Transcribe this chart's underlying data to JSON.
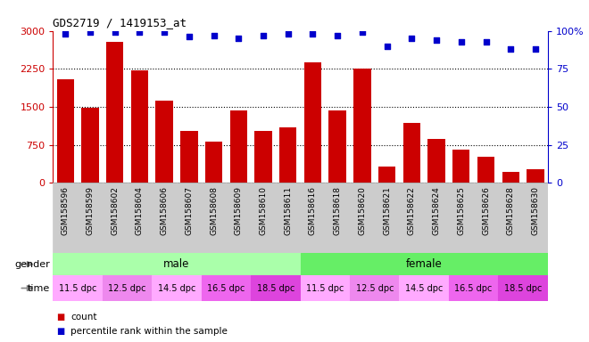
{
  "title": "GDS2719 / 1419153_at",
  "samples": [
    "GSM158596",
    "GSM158599",
    "GSM158602",
    "GSM158604",
    "GSM158606",
    "GSM158607",
    "GSM158608",
    "GSM158609",
    "GSM158610",
    "GSM158611",
    "GSM158616",
    "GSM158618",
    "GSM158620",
    "GSM158621",
    "GSM158622",
    "GSM158624",
    "GSM158625",
    "GSM158626",
    "GSM158628",
    "GSM158630"
  ],
  "counts": [
    2050,
    1480,
    2780,
    2220,
    1620,
    1020,
    820,
    1430,
    1020,
    1100,
    2380,
    1430,
    2260,
    330,
    1180,
    870,
    660,
    520,
    215,
    270
  ],
  "percentile_ranks": [
    98,
    99,
    99,
    99,
    99,
    96,
    97,
    95,
    97,
    98,
    98,
    97,
    99,
    90,
    95,
    94,
    93,
    93,
    88,
    88
  ],
  "bar_color": "#cc0000",
  "dot_color": "#0000cc",
  "ylim_left": [
    0,
    3000
  ],
  "ylim_right": [
    0,
    100
  ],
  "yticks_left": [
    0,
    750,
    1500,
    2250,
    3000
  ],
  "yticks_right": [
    0,
    25,
    50,
    75,
    100
  ],
  "ytick_labels_left": [
    "0",
    "750",
    "1500",
    "2250",
    "3000"
  ],
  "ytick_labels_right": [
    "0",
    "25",
    "50",
    "75",
    "100%"
  ],
  "grid_lines": [
    750,
    1500,
    2250
  ],
  "gender_groups": [
    {
      "label": "male",
      "start": 0,
      "end": 10,
      "color": "#aaffaa"
    },
    {
      "label": "female",
      "start": 10,
      "end": 20,
      "color": "#66ee66"
    }
  ],
  "time_groups": [
    {
      "label": "11.5 dpc",
      "start": 0,
      "end": 2,
      "color": "#ffaaff"
    },
    {
      "label": "12.5 dpc",
      "start": 2,
      "end": 4,
      "color": "#ee88ee"
    },
    {
      "label": "14.5 dpc",
      "start": 4,
      "end": 6,
      "color": "#ffaaff"
    },
    {
      "label": "16.5 dpc",
      "start": 6,
      "end": 8,
      "color": "#ee66ee"
    },
    {
      "label": "18.5 dpc",
      "start": 8,
      "end": 10,
      "color": "#dd44dd"
    },
    {
      "label": "11.5 dpc",
      "start": 10,
      "end": 12,
      "color": "#ffaaff"
    },
    {
      "label": "12.5 dpc",
      "start": 12,
      "end": 14,
      "color": "#ee88ee"
    },
    {
      "label": "14.5 dpc",
      "start": 14,
      "end": 16,
      "color": "#ffaaff"
    },
    {
      "label": "16.5 dpc",
      "start": 16,
      "end": 18,
      "color": "#ee66ee"
    },
    {
      "label": "18.5 dpc",
      "start": 18,
      "end": 20,
      "color": "#dd44dd"
    }
  ],
  "legend_items": [
    {
      "label": "count",
      "color": "#cc0000"
    },
    {
      "label": "percentile rank within the sample",
      "color": "#0000cc"
    }
  ],
  "bg_color": "#ffffff",
  "tick_label_color_left": "#cc0000",
  "tick_label_color_right": "#0000cc",
  "gender_label": "gender",
  "time_label": "time",
  "xlabel_bg": "#cccccc",
  "xlabel_border": "#999999"
}
